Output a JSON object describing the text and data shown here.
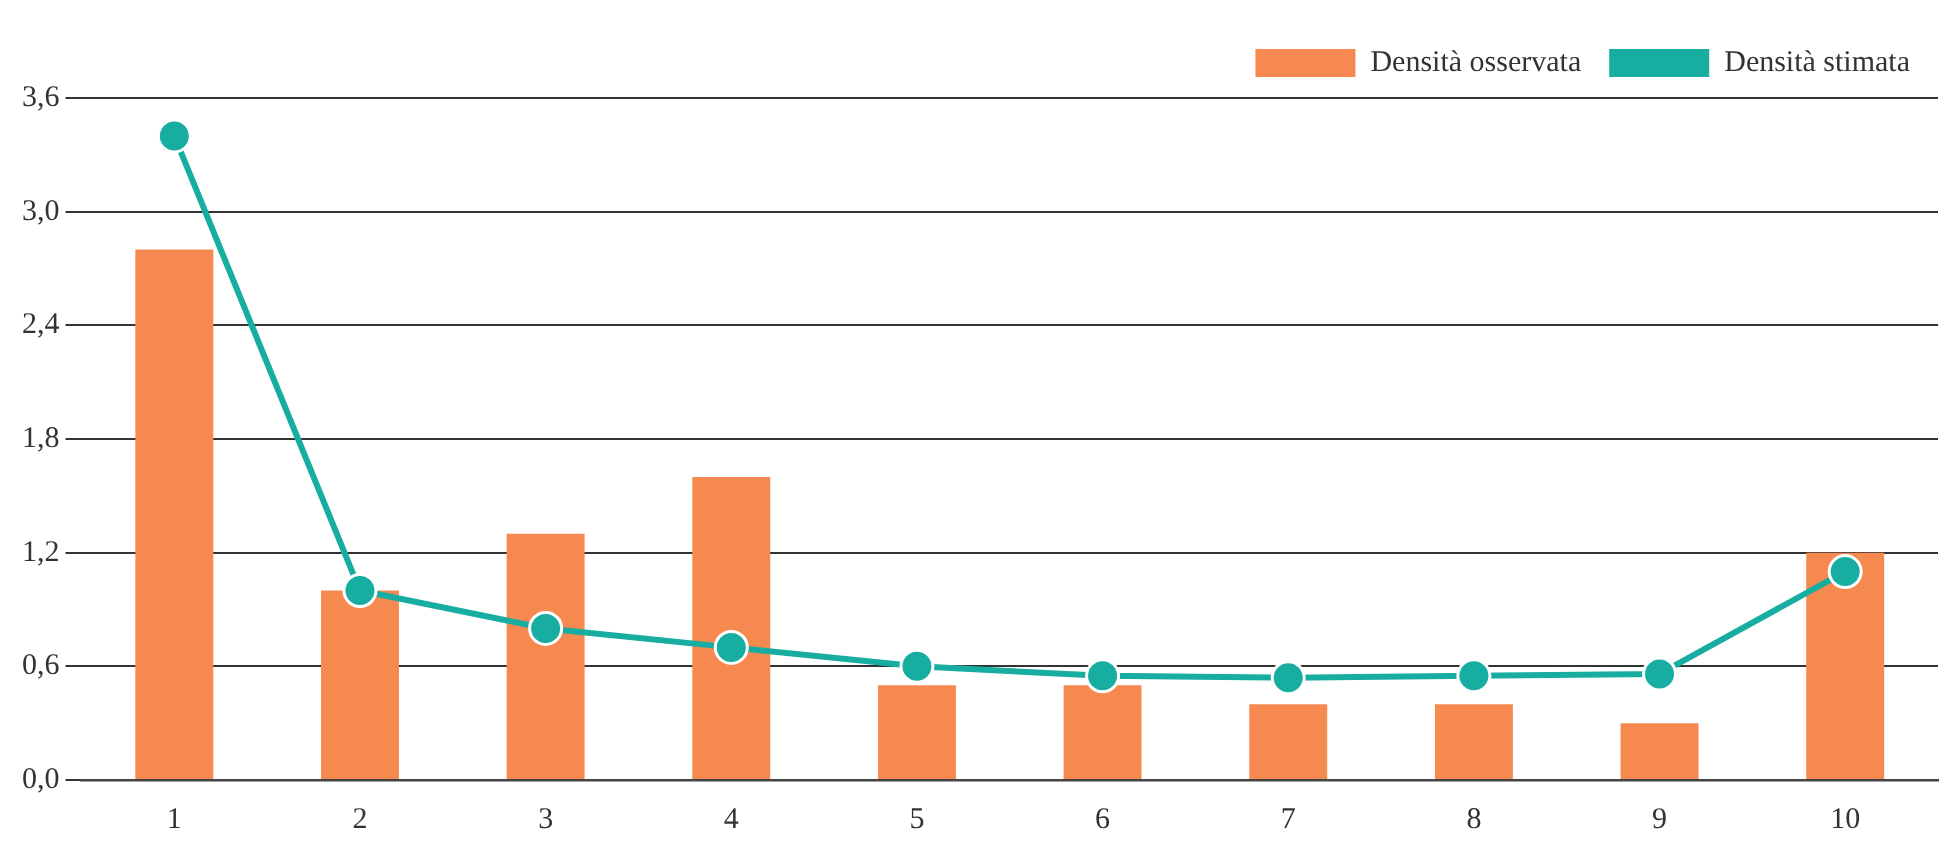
{
  "chart_data": {
    "type": "bar",
    "categories": [
      "1",
      "2",
      "3",
      "4",
      "5",
      "6",
      "7",
      "8",
      "9",
      "10"
    ],
    "series": [
      {
        "name": "Densità osservata",
        "color": "#f5894f",
        "values": [
          2.8,
          1.0,
          1.3,
          1.6,
          0.5,
          0.5,
          0.4,
          0.4,
          0.3,
          1.2
        ]
      },
      {
        "name": "Densità stimata",
        "type": "line",
        "color": "#17ada0",
        "values": [
          3.4,
          1.0,
          0.8,
          0.7,
          0.6,
          0.55,
          0.54,
          0.55,
          0.56,
          1.1
        ]
      }
    ],
    "ylim": [
      0,
      3.6
    ],
    "yticks": [
      {
        "value": 0,
        "label": "0,0"
      },
      {
        "value": 0.6,
        "label": "0,6"
      },
      {
        "value": 1.2,
        "label": "1,2"
      },
      {
        "value": 1.8,
        "label": "1,8"
      },
      {
        "value": 2.4,
        "label": "2,4"
      },
      {
        "value": 3.0,
        "label": "3,0"
      },
      {
        "value": 3.6,
        "label": "3,6"
      }
    ],
    "grid": "y",
    "legend": "top right",
    "marker": "circle"
  }
}
